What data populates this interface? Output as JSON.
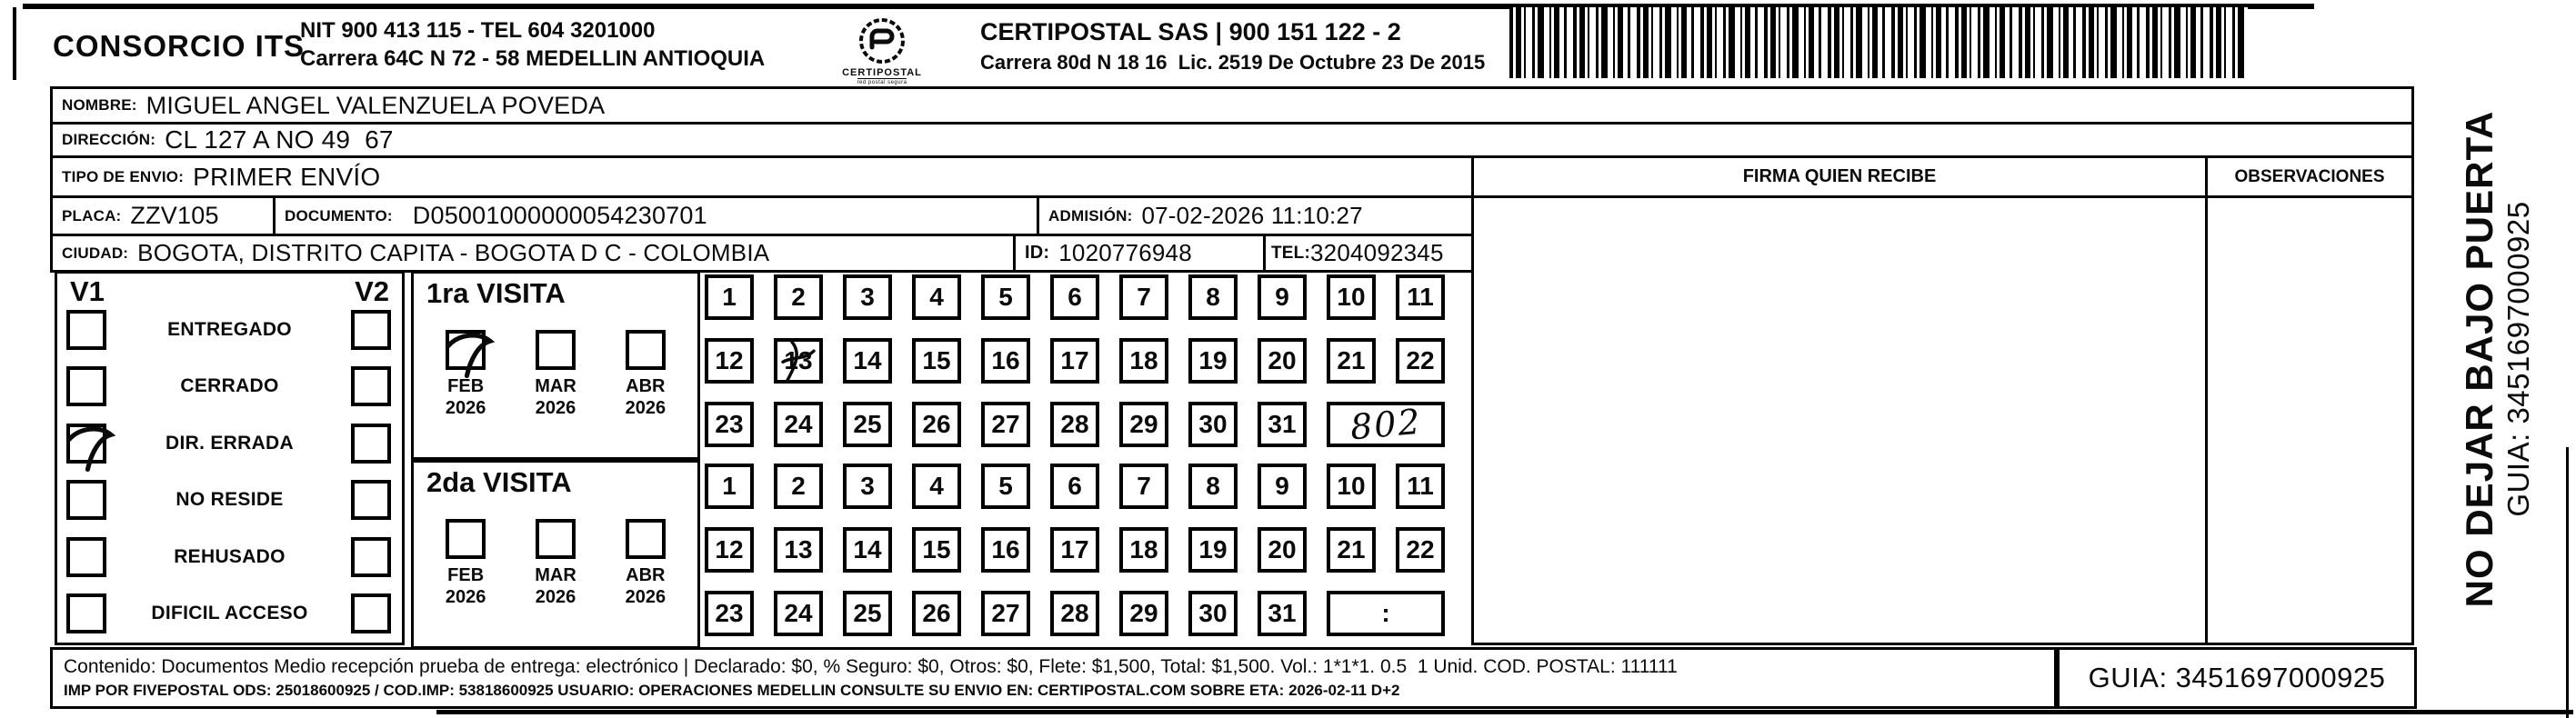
{
  "colors": {
    "ink": "#0b0b0b",
    "paper": "#ffffff"
  },
  "header": {
    "consorcio": "CONSORCIO ITS",
    "nit_line1": "NIT 900 413 115 - TEL 604 3201000",
    "nit_line2": "Carrera 64C N 72 - 58 MEDELLIN ANTIOQUIA",
    "logo_label": "CERTIPOSTAL",
    "logo_sub": "red postal segura",
    "certipostal_title": "CERTIPOSTAL SAS | 900 151 122 - 2",
    "certipostal_address": "Carrera 80d N 18 16  Lic. 2519 De Octubre 23 De 2015",
    "barcode_icon": "barcode"
  },
  "recipient": {
    "nombre_label": "NOMBRE:",
    "nombre": "MIGUEL ANGEL VALENZUELA POVEDA",
    "direccion_label": "DIRECCIÓN:",
    "direccion": "CL 127 A NO 49  67",
    "tipo_label": "TIPO DE ENVIO:",
    "tipo": "PRIMER ENVÍO",
    "placa_label": "PLACA:",
    "placa": "ZZV105",
    "documento_label": "DOCUMENTO:",
    "documento": "D05001000000054230701",
    "admision_label": "ADMISIÓN:",
    "admision": "07-02-2026 11:10:27",
    "ciudad_label": "CIUDAD:",
    "ciudad": "BOGOTA, DISTRITO CAPITA - BOGOTA D C - COLOMBIA",
    "id_label": "ID:",
    "id": "1020776948",
    "tel_label": "TEL:",
    "tel": "3204092345"
  },
  "table": {
    "firma_header": "FIRMA QUIEN RECIBE",
    "observaciones_header": "OBSERVACIONES"
  },
  "status": {
    "col1": "V1",
    "col2": "V2",
    "options": [
      "ENTREGADO",
      "CERRADO",
      "DIR. ERRADA",
      "NO RESIDE",
      "REHUSADO",
      "DIFICIL ACCESO"
    ],
    "v1_checked": "DIR. ERRADA"
  },
  "visita1": {
    "title": "1ra VISITA",
    "months": [
      "FEB 2026",
      "MAR 2026",
      "ABR 2026"
    ],
    "checked_month": "FEB 2026",
    "days": [
      1,
      2,
      3,
      4,
      5,
      6,
      7,
      8,
      9,
      10,
      11,
      12,
      13,
      14,
      15,
      16,
      17,
      18,
      19,
      20,
      21,
      22,
      23,
      24,
      25,
      26,
      27,
      28,
      29,
      30,
      31
    ],
    "marked_day": 13,
    "handwritten_note": "802"
  },
  "visita2": {
    "title": "2da VISITA",
    "months": [
      "FEB 2026",
      "MAR 2026",
      "ABR 2026"
    ],
    "checked_month": null,
    "days": [
      1,
      2,
      3,
      4,
      5,
      6,
      7,
      8,
      9,
      10,
      11,
      12,
      13,
      14,
      15,
      16,
      17,
      18,
      19,
      20,
      21,
      22,
      23,
      24,
      25,
      26,
      27,
      28,
      29,
      30,
      31
    ],
    "marked_day": null,
    "time_box_label": ":"
  },
  "footer": {
    "line1": "Contenido: Documentos Medio recepción prueba de entrega: electrónico | Declarado: $0, % Seguro: $0, Otros: $0, Flete: $1,500, Total: $1,500. Vol.: 1*1*1. 0.5  1 Unid. COD. POSTAL: 111111",
    "line2": "IMP POR FIVEPOSTAL ODS: 25018600925 / COD.IMP: 53818600925 USUARIO: OPERACIONES MEDELLIN CONSULTE SU ENVIO EN: CERTIPOSTAL.COM SOBRE ETA: 2026-02-11 D+2",
    "guia": "GUIA: 3451697000925"
  },
  "side_strip": {
    "warning": "NO DEJAR BAJO PUERTA",
    "guia": "GUIA: 3451697000925"
  }
}
